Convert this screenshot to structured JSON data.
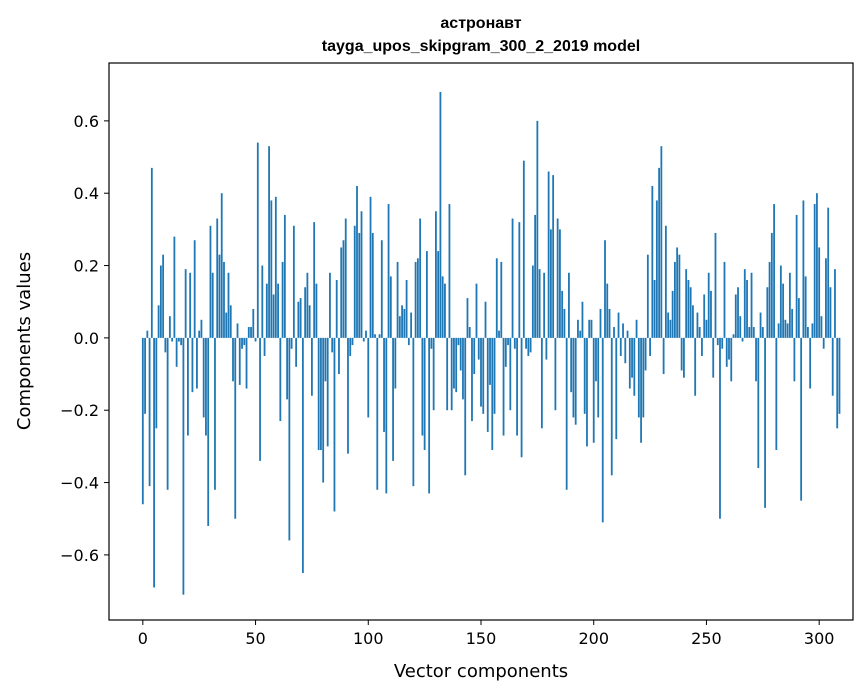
{
  "chart_data": {
    "type": "bar",
    "title": "астронавт",
    "subtitle": "tayga_upos_skipgram_300_2_2019 model",
    "xlabel": "Vector components",
    "ylabel": "Components values",
    "xlim": [
      -15,
      315
    ],
    "ylim": [
      -0.78,
      0.76
    ],
    "xticks": [
      0,
      50,
      100,
      150,
      200,
      250,
      300
    ],
    "yticks": [
      -0.6,
      -0.4,
      -0.2,
      0.0,
      0.2,
      0.4,
      0.6
    ],
    "ytick_labels": [
      "−0.6",
      "−0.4",
      "−0.2",
      "0.0",
      "0.2",
      "0.4",
      "0.6"
    ],
    "xtick_labels": [
      "0",
      "50",
      "100",
      "150",
      "200",
      "250",
      "300"
    ],
    "grid": false,
    "bar_color": "#1f77b4",
    "x_start": 0,
    "values": [
      -0.46,
      -0.21,
      0.02,
      -0.41,
      0.47,
      -0.69,
      -0.25,
      0.09,
      0.2,
      0.23,
      -0.04,
      -0.42,
      0.06,
      -0.01,
      0.28,
      -0.08,
      -0.01,
      -0.02,
      -0.71,
      0.19,
      -0.27,
      0.18,
      -0.15,
      0.27,
      -0.14,
      0.02,
      0.05,
      -0.22,
      -0.27,
      -0.52,
      0.31,
      0.18,
      -0.42,
      0.33,
      0.23,
      0.4,
      0.21,
      0.07,
      0.18,
      0.09,
      -0.12,
      -0.5,
      0.04,
      -0.13,
      -0.03,
      -0.02,
      -0.14,
      0.03,
      0.03,
      0.08,
      -0.01,
      0.54,
      -0.34,
      0.2,
      -0.05,
      0.15,
      0.53,
      0.38,
      0.12,
      0.39,
      0.15,
      -0.23,
      0.21,
      0.34,
      -0.17,
      -0.56,
      -0.03,
      0.31,
      -0.08,
      0.1,
      0.11,
      -0.65,
      0.14,
      0.18,
      0.09,
      -0.16,
      0.32,
      0.15,
      -0.31,
      -0.31,
      -0.4,
      -0.12,
      -0.3,
      0.18,
      -0.04,
      -0.48,
      0.16,
      -0.1,
      0.25,
      0.27,
      0.33,
      -0.32,
      -0.05,
      -0.02,
      0.31,
      0.42,
      0.29,
      0.35,
      -0.01,
      0.02,
      -0.22,
      0.39,
      0.29,
      0.01,
      -0.42,
      0.01,
      0.27,
      -0.26,
      -0.43,
      0.37,
      0.17,
      -0.34,
      -0.14,
      0.21,
      0.06,
      0.09,
      0.08,
      0.16,
      -0.02,
      0.07,
      -0.41,
      0.21,
      0.22,
      0.33,
      -0.27,
      -0.31,
      0.24,
      -0.43,
      -0.03,
      -0.2,
      0.35,
      0.24,
      0.68,
      0.17,
      0.15,
      -0.2,
      0.37,
      -0.2,
      -0.14,
      -0.15,
      -0.02,
      -0.09,
      -0.17,
      -0.38,
      0.11,
      0.03,
      -0.23,
      -0.1,
      0.15,
      -0.06,
      -0.19,
      -0.21,
      0.1,
      -0.26,
      -0.13,
      -0.31,
      -0.21,
      0.22,
      0.02,
      0.21,
      -0.27,
      -0.08,
      -0.02,
      -0.2,
      0.33,
      -0.03,
      -0.27,
      0.32,
      -0.33,
      0.49,
      -0.03,
      -0.05,
      -0.04,
      0.2,
      0.34,
      0.6,
      0.19,
      -0.25,
      0.18,
      -0.06,
      0.46,
      0.3,
      0.45,
      -0.2,
      0.33,
      0.3,
      0.13,
      0.08,
      -0.42,
      0.18,
      -0.15,
      -0.22,
      -0.24,
      0.05,
      0.02,
      0.1,
      -0.21,
      -0.3,
      0.05,
      0.05,
      -0.29,
      -0.12,
      -0.22,
      0.08,
      -0.51,
      0.27,
      0.15,
      0.08,
      -0.38,
      0.03,
      -0.28,
      0.07,
      -0.05,
      0.04,
      -0.07,
      0.02,
      -0.14,
      -0.11,
      -0.16,
      0.05,
      -0.22,
      -0.29,
      -0.22,
      -0.09,
      0.23,
      -0.05,
      0.42,
      0.16,
      0.38,
      0.47,
      0.53,
      -0.1,
      0.31,
      0.07,
      0.05,
      0.13,
      0.21,
      0.25,
      0.23,
      -0.09,
      -0.11,
      0.19,
      0.16,
      0.14,
      0.09,
      -0.16,
      0.07,
      0.03,
      -0.05,
      0.12,
      0.05,
      0.18,
      0.13,
      -0.11,
      0.29,
      -0.02,
      -0.5,
      -0.03,
      0.21,
      -0.08,
      -0.06,
      -0.12,
      0.01,
      0.12,
      0.14,
      0.06,
      -0.01,
      0.19,
      0.16,
      0.03,
      0.18,
      0.03,
      -0.12,
      -0.36,
      0.07,
      0.03,
      -0.47,
      0.14,
      0.21,
      0.29,
      0.37,
      -0.31,
      0.04,
      0.2,
      0.15,
      0.05,
      0.04,
      0.18,
      0.08,
      -0.12,
      0.34,
      0.11,
      -0.45,
      0.38,
      0.17,
      0.03,
      -0.14,
      0.04,
      0.37,
      0.4,
      0.25,
      0.06,
      -0.03,
      0.22,
      0.36,
      0.14,
      -0.16,
      0.19,
      -0.25,
      -0.21
    ]
  }
}
